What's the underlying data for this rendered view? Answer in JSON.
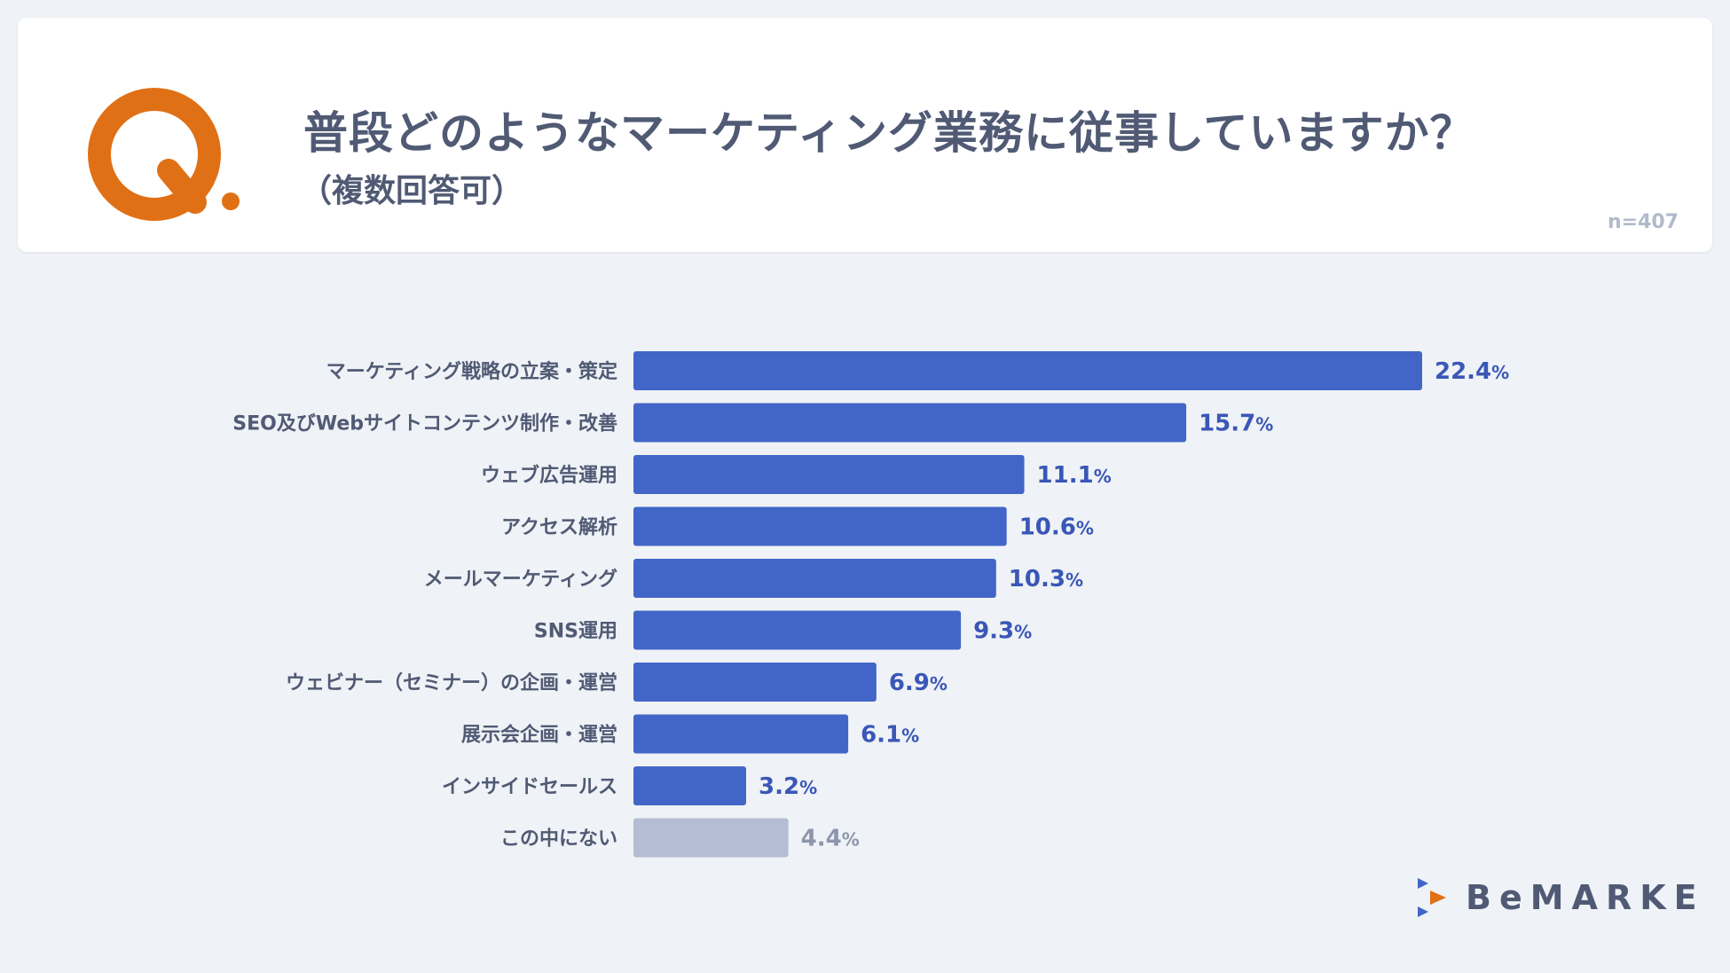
{
  "header": {
    "title": "普段どのようなマーケティング業務に従事していますか？",
    "subtitle": "（複数回答可）",
    "sample_size": "n=407"
  },
  "colors": {
    "bar_primary": "#4266c8",
    "bar_muted": "#b4bdd3",
    "label_primary": "#3a57b7",
    "label_muted": "#8d96ab",
    "category_text": "#505a74",
    "logo_orange": "#e07015"
  },
  "chart_data": {
    "type": "bar",
    "orientation": "horizontal",
    "title": "普段どのようなマーケティング業務に従事していますか？",
    "subtitle": "（複数回答可）",
    "categories": [
      "マーケティング戦略の立案・策定",
      "SEO及びWebサイトコンテンツ制作・改善",
      "ウェブ広告運用",
      "アクセス解析",
      "メールマーケティング",
      "SNS運用",
      "ウェビナー（セミナー）の企画・運営",
      "展示会企画・運営",
      "インサイドセールス",
      "この中にない"
    ],
    "values": [
      22.4,
      15.7,
      11.1,
      10.6,
      10.3,
      9.3,
      6.9,
      6.1,
      3.2,
      4.4
    ],
    "muted": [
      false,
      false,
      false,
      false,
      false,
      false,
      false,
      false,
      false,
      true
    ],
    "unit": "%",
    "xlim": [
      0,
      22.4
    ],
    "grid": false,
    "legend": "none"
  },
  "brand": {
    "name": "BeMARKE"
  }
}
